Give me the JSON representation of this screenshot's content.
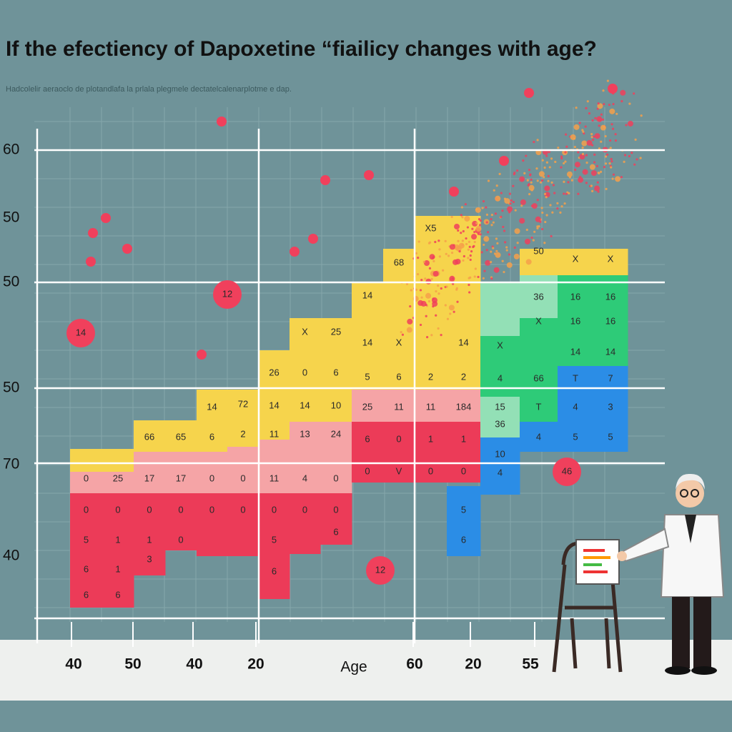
{
  "title": "If the efectiency of Dapoxetine “fiailicy changes with age?",
  "subtitle": "Hadcolelir aeraoclo de plotandlafa la prlala plegmele dectatelcalenarplotme e dap.",
  "y_labels": [
    "60",
    "50",
    "50",
    "50",
    "70",
    "40"
  ],
  "x_labels": [
    "40",
    "50",
    "40",
    "20",
    "60",
    "20",
    "55"
  ],
  "x_axis_label": "Age",
  "bubbles": [
    "14",
    "12",
    "12",
    "46"
  ],
  "columns": [
    {
      "cells": [
        {
          "color": "#f6d44c"
        },
        {
          "color": "#f5a4a6",
          "labels": [
            "0"
          ]
        },
        {
          "color": "#ec3b58",
          "labels": [
            "0",
            "5",
            "6",
            "6"
          ]
        }
      ]
    },
    {
      "cells": [
        {
          "color": "#f6d44c"
        },
        {
          "color": "#f5a4a6",
          "labels": [
            "25"
          ]
        },
        {
          "color": "#ec3b58",
          "labels": [
            "0",
            "1",
            "1",
            "6"
          ]
        }
      ]
    },
    {
      "cells": [
        {
          "color": "#f6d44c",
          "labels": [
            "66"
          ]
        },
        {
          "color": "#f5a4a6",
          "labels": [
            "17"
          ]
        },
        {
          "color": "#ec3b58",
          "labels": [
            "0",
            "1",
            "3"
          ]
        }
      ]
    },
    {
      "cells": [
        {
          "color": "#f6d44c",
          "labels": [
            "65"
          ]
        },
        {
          "color": "#f5a4a6",
          "labels": [
            "17"
          ]
        },
        {
          "color": "#ec3b58",
          "labels": [
            "0",
            "0"
          ]
        }
      ]
    },
    {
      "cells": [
        {
          "color": "#f6d44c",
          "labels": [
            "14",
            "6"
          ]
        },
        {
          "color": "#f5a4a6",
          "labels": [
            "0"
          ]
        },
        {
          "color": "#ec3b58",
          "labels": [
            "0"
          ]
        }
      ]
    },
    {
      "cells": [
        {
          "color": "#f6d44c",
          "labels": [
            "72",
            "2"
          ]
        },
        {
          "color": "#f5a4a6",
          "labels": [
            "0"
          ]
        },
        {
          "color": "#ec3b58",
          "labels": [
            "0"
          ]
        }
      ]
    },
    {
      "cells": [
        {
          "color": "#f6d44c",
          "labels": [
            "26",
            "14",
            "11"
          ]
        },
        {
          "color": "#f5a4a6",
          "labels": [
            "11"
          ]
        },
        {
          "color": "#ec3b58",
          "labels": [
            "0",
            "5",
            "6"
          ]
        }
      ]
    },
    {
      "cells": [
        {
          "color": "#f6d44c",
          "labels": [
            "X",
            "0",
            "14"
          ]
        },
        {
          "color": "#f5a4a6",
          "labels": [
            "13",
            "4"
          ]
        },
        {
          "color": "#ec3b58",
          "labels": [
            "0"
          ]
        }
      ]
    },
    {
      "cells": [
        {
          "color": "#f6d44c",
          "labels": [
            "25",
            "6",
            "10"
          ]
        },
        {
          "color": "#f5a4a6",
          "labels": [
            "24",
            "0"
          ]
        },
        {
          "color": "#ec3b58",
          "labels": [
            "0",
            "6"
          ]
        }
      ]
    },
    {
      "cells": [
        {
          "color": "#f6d44c",
          "labels": [
            "14",
            "14",
            "5"
          ]
        },
        {
          "color": "#f5a4a6",
          "labels": [
            "25"
          ]
        },
        {
          "color": "#ec3b58",
          "labels": [
            "6",
            "0"
          ]
        }
      ]
    },
    {
      "cells": [
        {
          "color": "#f6d44c",
          "labels": [
            "68",
            "X",
            "6"
          ]
        },
        {
          "color": "#f5a4a6",
          "labels": [
            "11"
          ]
        },
        {
          "color": "#ec3b58",
          "labels": [
            "0",
            "V"
          ]
        }
      ]
    },
    {
      "cells": [
        {
          "color": "#f6d44c",
          "labels": [
            "X5",
            "2"
          ]
        },
        {
          "color": "#f5a4a6",
          "labels": [
            "11"
          ]
        },
        {
          "color": "#ec3b58",
          "labels": [
            "1",
            "0"
          ]
        }
      ]
    },
    {
      "cells": [
        {
          "color": "#f6d44c",
          "labels": [
            "14",
            "2"
          ]
        },
        {
          "color": "#f5a4a6",
          "labels": [
            "184"
          ]
        },
        {
          "color": "#ec3b58",
          "labels": [
            "1",
            "0"
          ]
        },
        {
          "color": "#2b8de6",
          "labels": [
            "5",
            "6"
          ]
        }
      ]
    },
    {
      "cells": [
        {
          "color": "#93e0b6"
        },
        {
          "color": "#2ecb78",
          "labels": [
            "X",
            "4"
          ]
        },
        {
          "color": "#93e0b6",
          "labels": [
            "15",
            "36"
          ]
        },
        {
          "color": "#2b8de6",
          "labels": [
            "10",
            "4"
          ]
        }
      ]
    },
    {
      "cells": [
        {
          "color": "#f6d44c",
          "labels": [
            "50"
          ]
        },
        {
          "color": "#93e0b6",
          "labels": [
            "36"
          ]
        },
        {
          "color": "#2ecb78",
          "labels": [
            "X",
            "66",
            "T"
          ]
        },
        {
          "color": "#2b8de6",
          "labels": [
            "4"
          ]
        }
      ]
    },
    {
      "cells": [
        {
          "color": "#f6d44c",
          "labels": [
            "X"
          ]
        },
        {
          "color": "#2ecb78",
          "labels": [
            "16",
            "16",
            "14"
          ]
        },
        {
          "color": "#2b8de6",
          "labels": [
            "T",
            "4",
            "5"
          ]
        }
      ]
    },
    {
      "cells": [
        {
          "color": "#f6d44c",
          "labels": [
            "X"
          ]
        },
        {
          "color": "#2ecb78",
          "labels": [
            "16",
            "16",
            "14"
          ]
        },
        {
          "color": "#2b8de6",
          "labels": [
            "7",
            "3",
            "5"
          ]
        }
      ]
    }
  ]
}
